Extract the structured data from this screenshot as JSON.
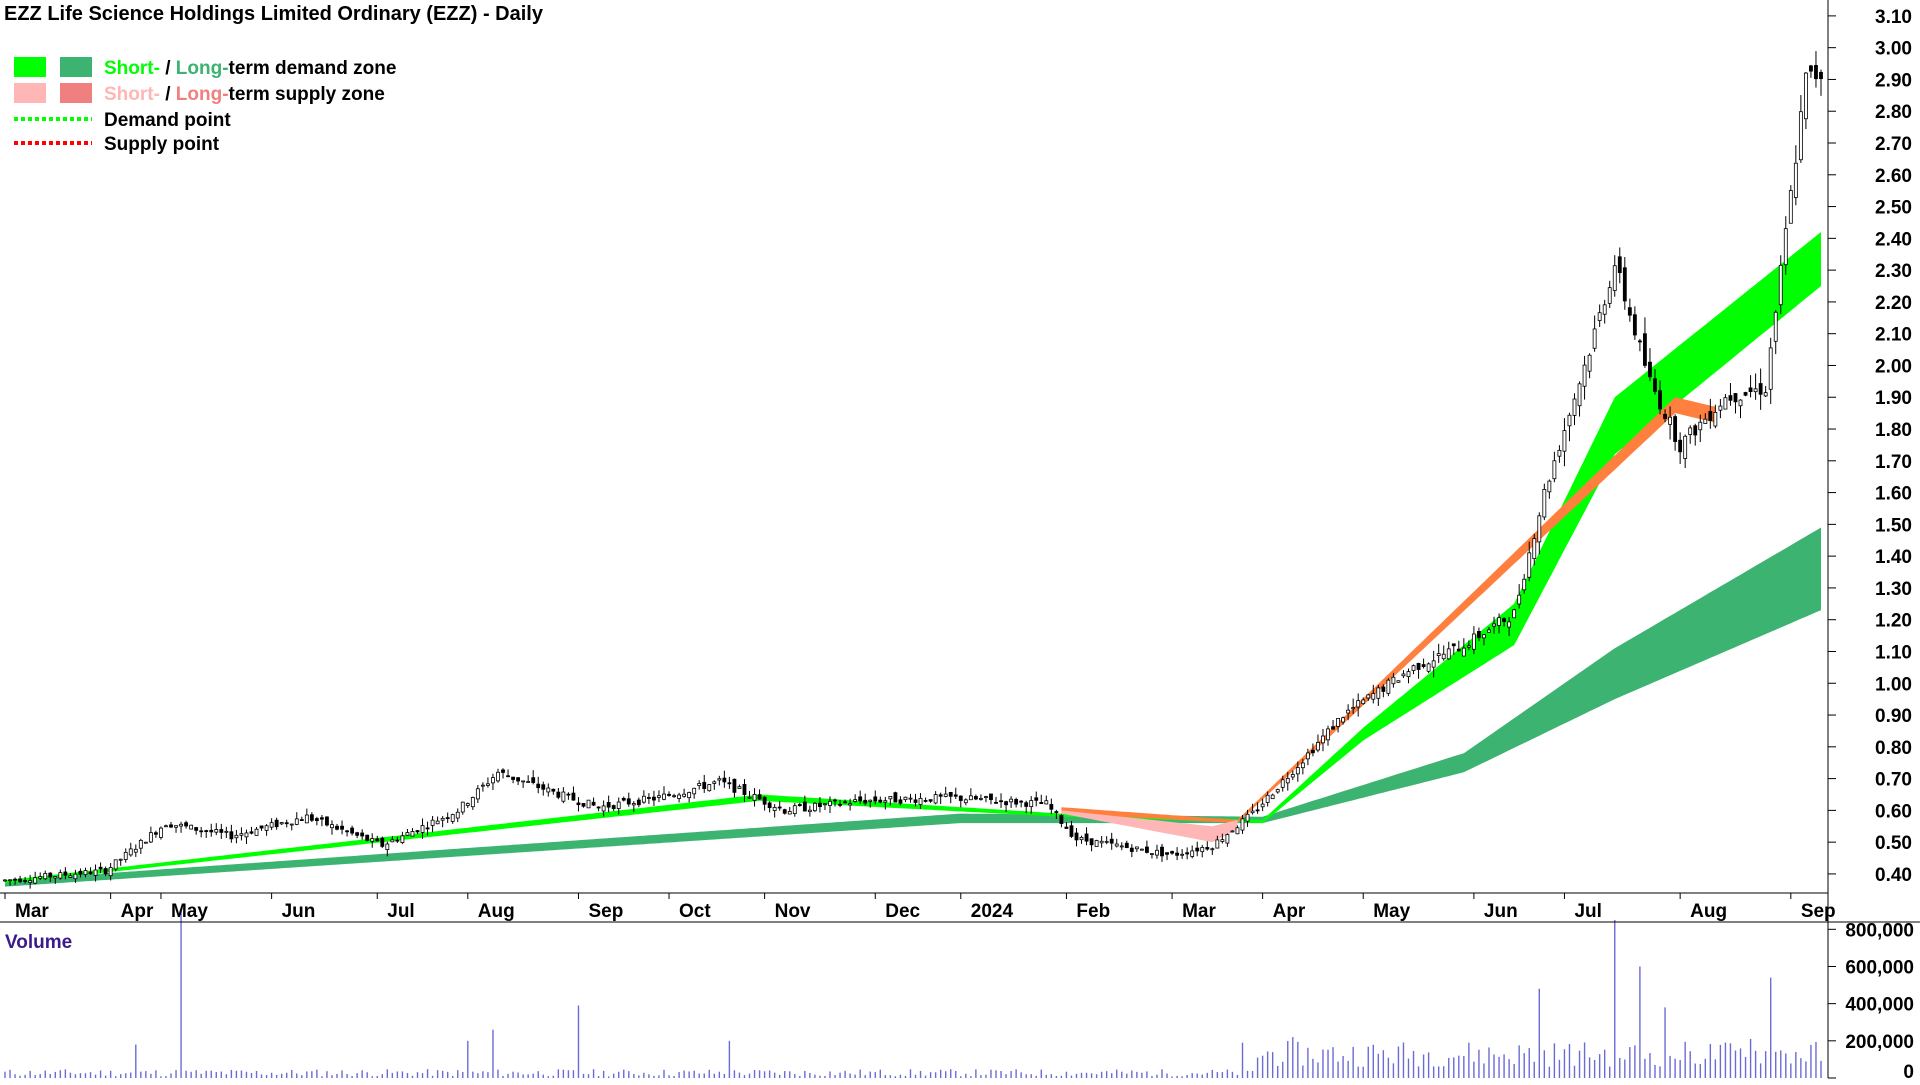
{
  "chart_data": {
    "type": "candlestick",
    "title": "EZZ Life Science Holdings Limited Ordinary (EZZ) - Daily",
    "legend": [
      {
        "swatch_colors": [
          "#00ff00",
          "#3cb371"
        ],
        "label_parts": [
          "Short-",
          " / ",
          "Long-",
          "term demand zone"
        ],
        "label_colors": [
          "#00ff00",
          "#000000",
          "#3cb371",
          "#000000"
        ]
      },
      {
        "swatch_colors": [
          "#ffb6b6",
          "#f08080"
        ],
        "label_parts": [
          "Short-",
          " / ",
          "Long-",
          "term supply zone"
        ],
        "label_colors": [
          "#ffb6b6",
          "#000000",
          "#f08080",
          "#000000"
        ]
      },
      {
        "line_color": "#00ff00",
        "label": "Demand point"
      },
      {
        "line_color": "#ff0000",
        "label": "Supply point"
      }
    ],
    "price_axis": {
      "ticks": [
        "0.40",
        "0.50",
        "0.60",
        "0.70",
        "0.80",
        "0.90",
        "1.00",
        "1.10",
        "1.20",
        "1.30",
        "1.40",
        "1.50",
        "1.60",
        "1.70",
        "1.80",
        "1.90",
        "2.00",
        "2.10",
        "2.20",
        "2.30",
        "2.40",
        "2.50",
        "2.60",
        "2.70",
        "2.80",
        "2.90",
        "3.00",
        "3.10"
      ],
      "range": [
        0.34,
        3.15
      ]
    },
    "x_labels": [
      "Mar",
      "Apr",
      "May",
      "Jun",
      "Jul",
      "Aug",
      "Sep",
      "Oct",
      "Nov",
      "Dec",
      "2024",
      "Feb",
      "Mar",
      "Apr",
      "May",
      "Jun",
      "Jul",
      "Aug",
      "Sep"
    ],
    "x_label_index": [
      0,
      21,
      31,
      53,
      74,
      92,
      114,
      132,
      151,
      173,
      190,
      211,
      232,
      250,
      270,
      292,
      310,
      333,
      355
    ],
    "bar_count": 362,
    "price_series": [
      [
        0,
        0.38
      ],
      [
        20,
        0.41
      ],
      [
        32,
        0.56
      ],
      [
        45,
        0.52
      ],
      [
        60,
        0.58
      ],
      [
        75,
        0.49
      ],
      [
        90,
        0.6
      ],
      [
        98,
        0.72
      ],
      [
        112,
        0.64
      ],
      [
        118,
        0.61
      ],
      [
        130,
        0.64
      ],
      [
        142,
        0.69
      ],
      [
        155,
        0.6
      ],
      [
        170,
        0.63
      ],
      [
        188,
        0.64
      ],
      [
        207,
        0.62
      ],
      [
        213,
        0.51
      ],
      [
        232,
        0.46
      ],
      [
        240,
        0.49
      ],
      [
        248,
        0.59
      ],
      [
        258,
        0.76
      ],
      [
        266,
        0.9
      ],
      [
        280,
        1.05
      ],
      [
        290,
        1.12
      ],
      [
        300,
        1.22
      ],
      [
        306,
        1.6
      ],
      [
        315,
        2.05
      ],
      [
        320,
        2.32
      ],
      [
        327,
        1.95
      ],
      [
        333,
        1.75
      ],
      [
        342,
        1.9
      ],
      [
        350,
        1.93
      ],
      [
        358,
        2.9
      ],
      [
        361,
        2.92
      ]
    ],
    "short_demand_zone": [
      [
        0,
        0.37,
        0.38
      ],
      [
        150,
        0.63,
        0.65
      ],
      [
        210,
        0.58,
        0.59
      ],
      [
        250,
        0.56,
        0.57
      ],
      [
        270,
        0.82,
        0.86
      ],
      [
        300,
        1.12,
        1.25
      ],
      [
        320,
        1.72,
        1.9
      ],
      [
        361,
        2.25,
        2.42
      ]
    ],
    "long_demand_zone": [
      [
        0,
        0.36,
        0.38
      ],
      [
        190,
        0.56,
        0.59
      ],
      [
        250,
        0.56,
        0.58
      ],
      [
        290,
        0.72,
        0.78
      ],
      [
        320,
        0.95,
        1.11
      ],
      [
        361,
        1.23,
        1.49
      ]
    ],
    "short_supply_zone": [
      [
        210,
        0.59,
        0.6
      ],
      [
        240,
        0.5,
        0.55
      ],
      [
        245,
        0.54,
        0.57
      ]
    ],
    "long_supply_zone": [
      [
        210,
        0.59,
        0.61
      ],
      [
        245,
        0.56,
        0.57
      ],
      [
        332,
        1.85,
        1.9
      ],
      [
        340,
        1.82,
        1.87
      ]
    ],
    "volume_panel": {
      "label": "Volume",
      "ticks": [
        "0",
        "200,000",
        "400,000",
        "600,000",
        "800,000"
      ],
      "range": [
        0,
        920000
      ],
      "spikes": [
        [
          35,
          910000
        ],
        [
          26,
          180000
        ],
        [
          92,
          200000
        ],
        [
          97,
          260000
        ],
        [
          114,
          390000
        ],
        [
          144,
          200000
        ],
        [
          246,
          190000
        ],
        [
          256,
          220000
        ],
        [
          305,
          480000
        ],
        [
          320,
          850000
        ],
        [
          325,
          600000
        ],
        [
          330,
          380000
        ],
        [
          347,
          210000
        ],
        [
          351,
          540000
        ]
      ]
    }
  }
}
